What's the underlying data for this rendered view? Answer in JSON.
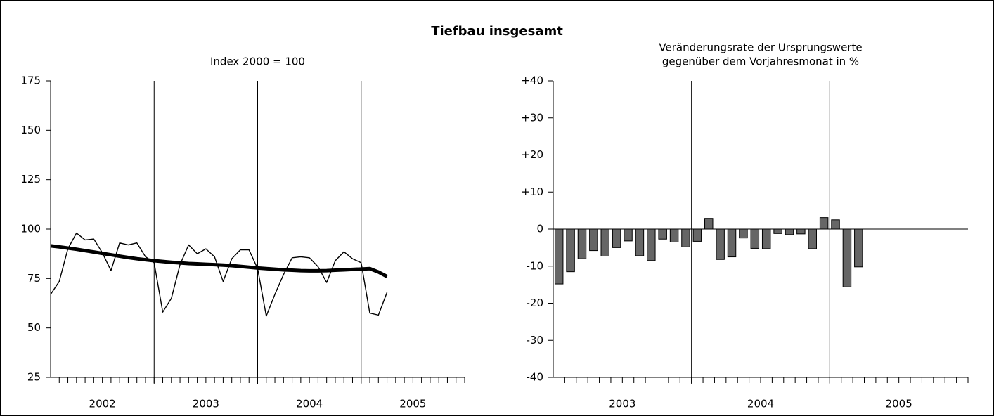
{
  "title": "Tiefbau insgesamt",
  "chart_data": [
    {
      "type": "line",
      "subtitle": [
        "Index 2000 = 100"
      ],
      "categories": [
        null,
        null,
        null,
        null,
        null,
        null,
        null,
        null,
        null,
        null,
        null,
        null,
        null,
        null,
        null,
        null,
        null,
        null,
        null,
        null,
        null,
        null,
        null,
        null,
        null,
        null,
        null,
        null,
        null,
        null,
        null,
        null,
        null,
        null,
        null,
        null,
        null,
        null,
        null,
        null,
        null,
        null,
        null,
        null,
        null,
        null,
        null,
        null
      ],
      "x_group_labels": [
        "2002",
        "2003",
        "2004",
        "2005"
      ],
      "series": [
        {
          "color": "#000000",
          "width": 1.4,
          "values": [
            67,
            73.5,
            90,
            98,
            94.5,
            95,
            88,
            79,
            93,
            92,
            93,
            86,
            83,
            58,
            65,
            82,
            92,
            87.5,
            90,
            86,
            73.5,
            85,
            89.5,
            89.5,
            80,
            56,
            67,
            77,
            85.5,
            86,
            85.5,
            81,
            73,
            84,
            88.5,
            85,
            83,
            57.5,
            56.5,
            68,
            null,
            null,
            null,
            null,
            null,
            null,
            null,
            null
          ]
        },
        {
          "color": "#000000",
          "width": 5,
          "values": [
            91.5,
            91,
            90.4,
            89.8,
            89.1,
            88.4,
            87.7,
            87,
            86.3,
            85.6,
            85,
            84.5,
            84,
            83.6,
            83.2,
            82.9,
            82.6,
            82.4,
            82.2,
            82,
            81.8,
            81.5,
            81.1,
            80.7,
            80.3,
            80,
            79.7,
            79.4,
            79.2,
            79,
            78.9,
            78.9,
            79,
            79.2,
            79.4,
            79.6,
            79.8,
            80,
            78.3,
            76,
            null,
            null,
            null,
            null,
            null,
            null,
            null,
            null
          ]
        }
      ],
      "ylim": [
        25,
        175
      ],
      "yticks": [
        25,
        50,
        75,
        100,
        125,
        150,
        175
      ]
    },
    {
      "type": "bar",
      "subtitle": [
        "Veränderungsrate der Ursprungswerte",
        "gegenüber dem Vorjahresmonat in %"
      ],
      "categories": [
        null,
        null,
        null,
        null,
        null,
        null,
        null,
        null,
        null,
        null,
        null,
        null,
        null,
        null,
        null,
        null,
        null,
        null,
        null,
        null,
        null,
        null,
        null,
        null,
        null,
        null,
        null,
        null,
        null,
        null,
        null,
        null,
        null,
        null,
        null,
        null
      ],
      "x_group_labels": [
        "2003",
        "2004",
        "2005"
      ],
      "color": "#666666",
      "values": [
        -14.8,
        -11.5,
        -8,
        -5.8,
        -7.3,
        -5,
        -3.2,
        -7.2,
        -8.5,
        -2.7,
        -3.5,
        -4.8,
        -3.3,
        2.9,
        -8.2,
        -7.5,
        -2.4,
        -5.2,
        -5.3,
        -1.2,
        -1.5,
        -1.3,
        -5.3,
        3.1,
        2.5,
        -15.6,
        -10.2,
        null,
        null,
        null,
        null,
        null,
        null,
        null,
        null,
        null
      ],
      "ylim": [
        -40,
        40
      ],
      "yticks": [
        -40,
        -30,
        -20,
        -10,
        0,
        {
          "value": 10,
          "label": "+10"
        },
        {
          "value": 20,
          "label": "+20"
        },
        {
          "value": 30,
          "label": "+30"
        },
        {
          "value": 40,
          "label": "+40"
        }
      ]
    }
  ]
}
